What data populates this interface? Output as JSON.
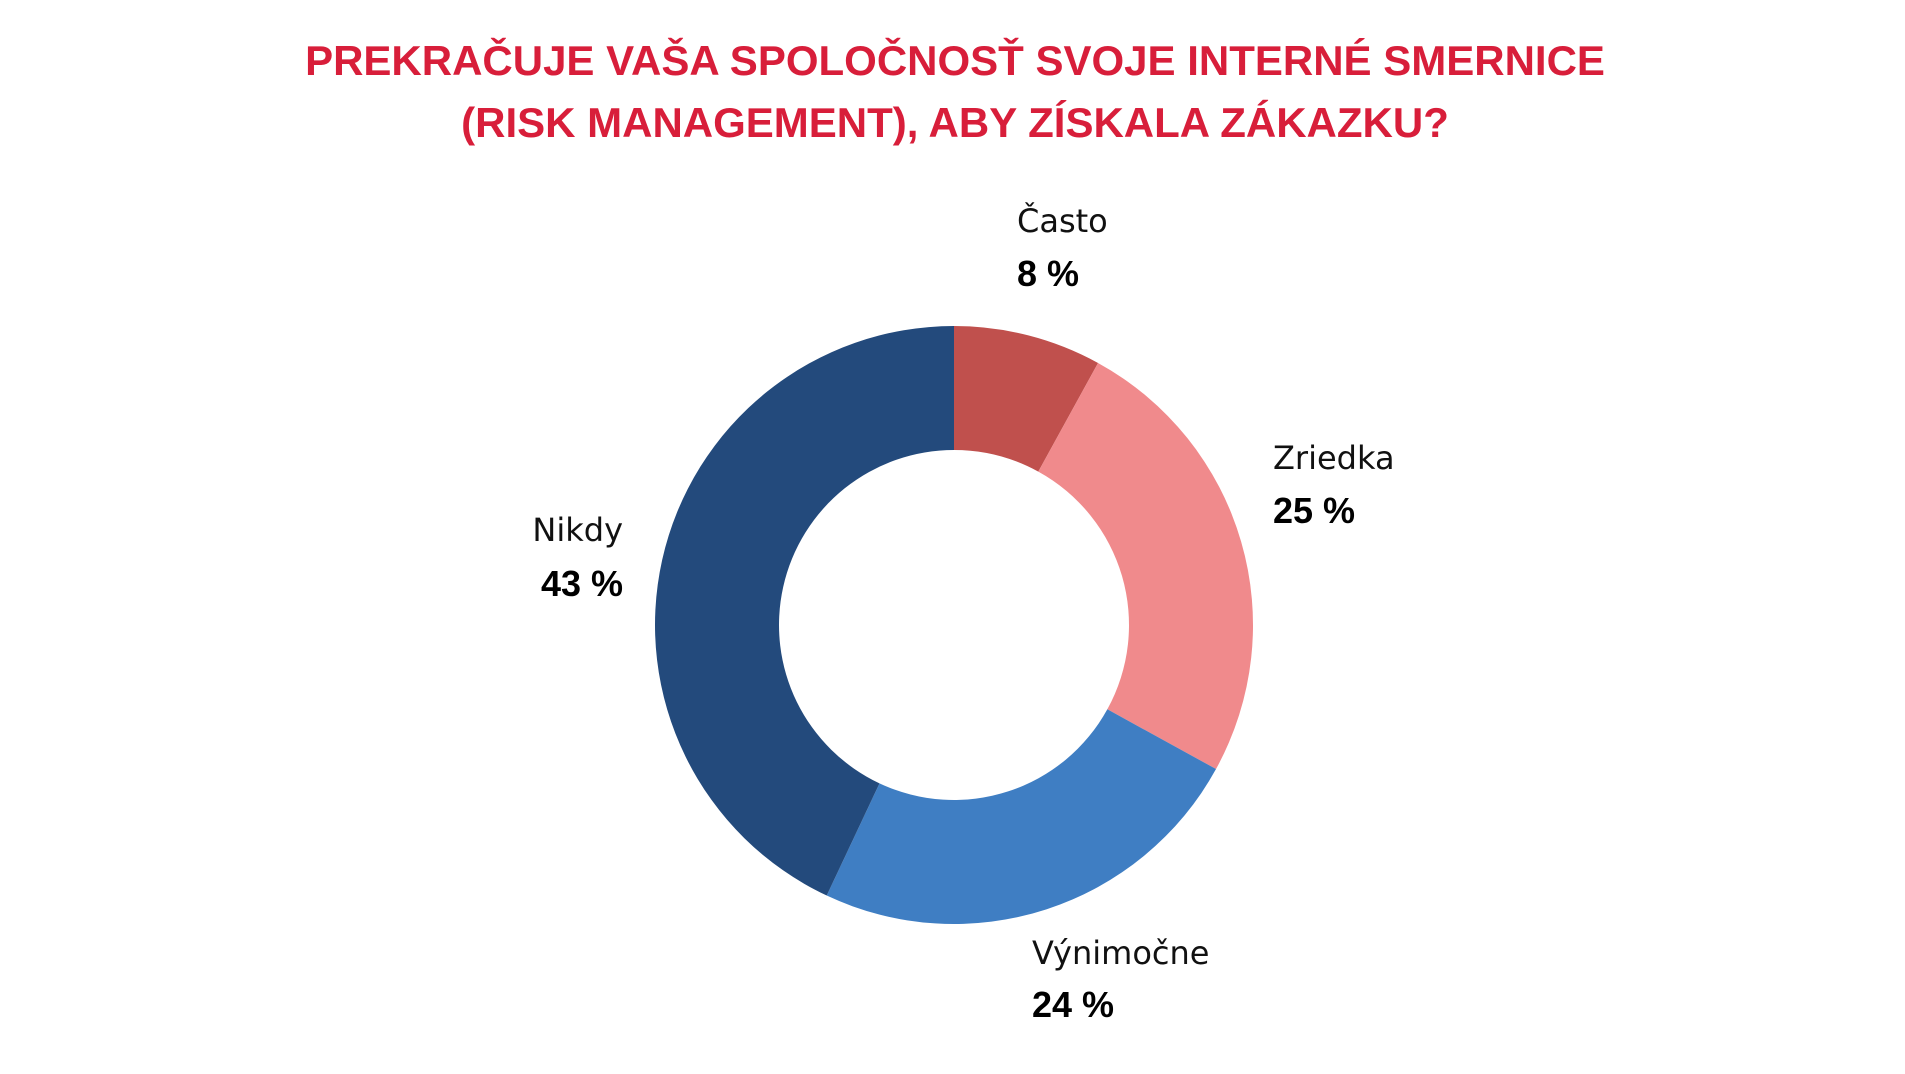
{
  "chart_data": {
    "type": "pie",
    "title": "PREKRAČUJE VAŠA SPOLOČNOSŤ SVOJE INTERNÉ SMERNICE (RISK MANAGEMENT), ABY ZÍSKALA ZÁKAZKU?",
    "categories": [
      "Často",
      "Zriedka",
      "Výnimočne",
      "Nikdy"
    ],
    "values": [
      8,
      25,
      24,
      43
    ],
    "value_labels": [
      "8 %",
      "25 %",
      "24 %",
      "43 %"
    ],
    "colors": [
      "#c0504d",
      "#f08a8c",
      "#3f7ec3",
      "#234a7c"
    ]
  }
}
